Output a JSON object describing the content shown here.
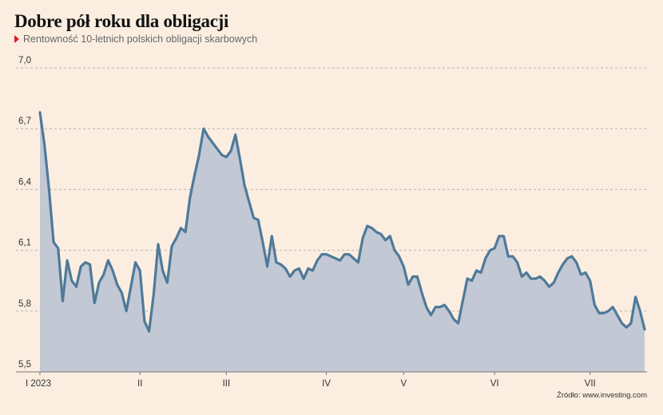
{
  "title": "Dobre pół roku dla obligacji",
  "subtitle": "Rentowność 10-letnich polskich obligacji skarbowych",
  "source": "Źródło: www.investing.com",
  "colors": {
    "background": "#fbeee1",
    "line": "#4f7a99",
    "area": "#c3c8d5",
    "grid": "#b9b3ad",
    "accent": "#e11b22"
  },
  "chart_data": {
    "type": "area",
    "title": "Dobre pół roku dla obligacji",
    "subtitle": "Rentowność 10-letnich polskich obligacji skarbowych",
    "xlabel": "",
    "ylabel": "",
    "ylim": [
      5.5,
      7.0
    ],
    "y_ticks": [
      5.5,
      5.8,
      6.1,
      6.4,
      6.7,
      7.0
    ],
    "y_tick_labels": [
      "5,5",
      "5,8",
      "6,1",
      "6,4",
      "6,7",
      "7,0"
    ],
    "x_ticks": [
      {
        "index": 0,
        "label": "I 2023"
      },
      {
        "index": 22,
        "label": "II"
      },
      {
        "index": 41,
        "label": "III"
      },
      {
        "index": 63,
        "label": "IV"
      },
      {
        "index": 80,
        "label": "V"
      },
      {
        "index": 100,
        "label": "VI"
      },
      {
        "index": 121,
        "label": "VII"
      }
    ],
    "grid": true,
    "series": [
      {
        "values": [
          6.78,
          6.62,
          6.4,
          6.14,
          6.11,
          5.85,
          6.05,
          5.95,
          5.92,
          6.02,
          6.04,
          6.03,
          5.84,
          5.94,
          5.98,
          6.05,
          6.0,
          5.93,
          5.89,
          5.8,
          5.92,
          6.04,
          6.0,
          5.75,
          5.7,
          5.88,
          6.13,
          6.0,
          5.94,
          6.12,
          6.16,
          6.21,
          6.19,
          6.36,
          6.47,
          6.57,
          6.7,
          6.66,
          6.63,
          6.6,
          6.57,
          6.56,
          6.59,
          6.67,
          6.55,
          6.42,
          6.34,
          6.26,
          6.25,
          6.14,
          6.02,
          6.17,
          6.04,
          6.03,
          6.01,
          5.97,
          6.0,
          6.01,
          5.96,
          6.01,
          6.0,
          6.05,
          6.08,
          6.08,
          6.07,
          6.06,
          6.05,
          6.08,
          6.08,
          6.06,
          6.04,
          6.16,
          6.22,
          6.21,
          6.19,
          6.18,
          6.15,
          6.17,
          6.1,
          6.07,
          6.02,
          5.93,
          5.97,
          5.97,
          5.89,
          5.82,
          5.78,
          5.82,
          5.82,
          5.83,
          5.8,
          5.76,
          5.74,
          5.85,
          5.96,
          5.95,
          6.0,
          5.99,
          6.06,
          6.1,
          6.11,
          6.17,
          6.17,
          6.07,
          6.07,
          6.04,
          5.97,
          5.99,
          5.96,
          5.96,
          5.97,
          5.95,
          5.92,
          5.94,
          5.99,
          6.03,
          6.06,
          6.07,
          6.04,
          5.98,
          5.99,
          5.95,
          5.83,
          5.79,
          5.79,
          5.8,
          5.82,
          5.78,
          5.74,
          5.72,
          5.74,
          5.87,
          5.8,
          5.71
        ]
      }
    ]
  }
}
